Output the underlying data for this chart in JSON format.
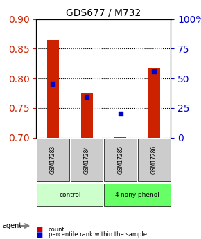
{
  "title": "GDS677 / M732",
  "samples": [
    "GSM17283",
    "GSM17284",
    "GSM17285",
    "GSM17286"
  ],
  "red_values": [
    0.865,
    0.775,
    0.701,
    0.818
  ],
  "blue_values": [
    0.791,
    0.768,
    0.74,
    0.812
  ],
  "ylim_left": [
    0.7,
    0.9
  ],
  "ylim_right": [
    0,
    100
  ],
  "yticks_left": [
    0.7,
    0.75,
    0.8,
    0.85,
    0.9
  ],
  "yticks_right": [
    0,
    25,
    50,
    75,
    100
  ],
  "ytick_labels_right": [
    "0",
    "25",
    "50",
    "75",
    "100%"
  ],
  "groups": [
    {
      "label": "control",
      "samples": [
        0,
        1
      ],
      "color": "#ccffcc"
    },
    {
      "label": "4-nonylphenol",
      "samples": [
        2,
        3
      ],
      "color": "#66ff66"
    }
  ],
  "agent_label": "agent",
  "legend_items": [
    {
      "label": "count",
      "color": "#cc0000"
    },
    {
      "label": "percentile rank within the sample",
      "color": "#0000cc"
    }
  ],
  "bar_width": 0.35,
  "red_color": "#cc2200",
  "blue_color": "#0000cc",
  "grid_color": "#000000",
  "sample_box_color": "#cccccc",
  "background_color": "#ffffff"
}
